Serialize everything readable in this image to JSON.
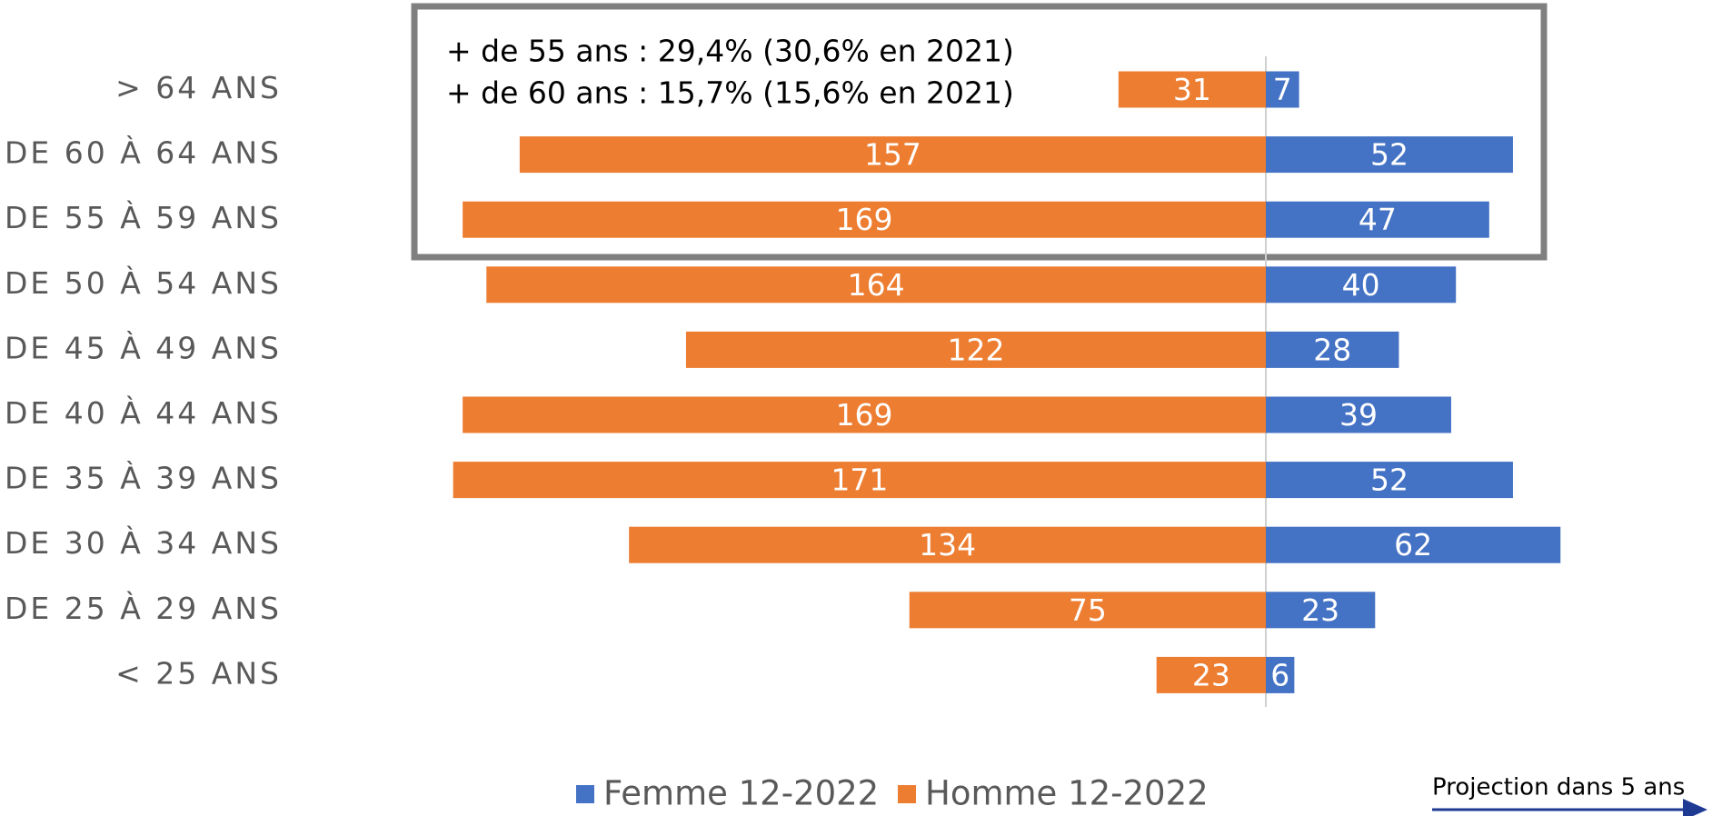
{
  "chart_data": {
    "type": "population-pyramid",
    "categories": [
      "> 64 ANS",
      "DE 60 À 64 ANS",
      "DE 55 À 59 ANS",
      "DE 50 À 54 ANS",
      "DE 45 À 49 ANS",
      "DE 40 À 44 ANS",
      "DE 35 À 39 ANS",
      "DE 30 À 34 ANS",
      "DE 25 À 29 ANS",
      "< 25 ANS"
    ],
    "series": [
      {
        "name": "Femme 12-2022",
        "color": "#4472c4",
        "side": "right",
        "values": [
          7,
          52,
          47,
          40,
          28,
          39,
          52,
          62,
          23,
          6
        ]
      },
      {
        "name": "Homme 12-2022",
        "color": "#ed7d31",
        "side": "left",
        "values": [
          31,
          157,
          169,
          164,
          122,
          169,
          171,
          134,
          75,
          23
        ]
      }
    ],
    "annotations": [
      "+ de 55 ans : 29,4% (30,6% en 2021)",
      "+ de 60 ans : 15,7% (15,6% en 2021)",
      "Projection dans 5 ans"
    ],
    "legend": "bottom"
  }
}
